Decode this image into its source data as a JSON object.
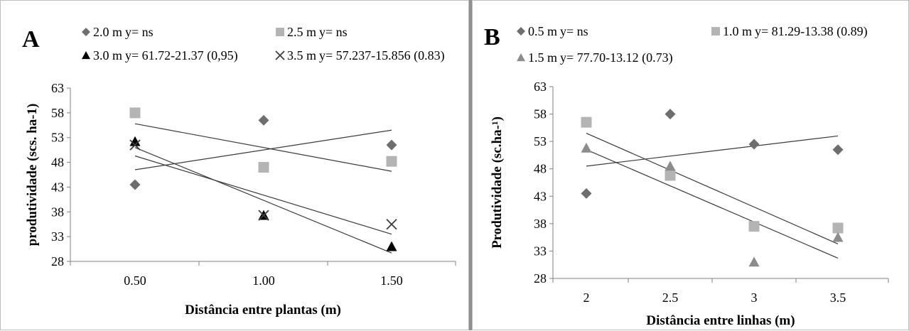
{
  "chart_data": [
    {
      "panel": "A",
      "type": "scatter",
      "xlabel": "Distância entre plantas (m)",
      "ylabel": "produtividade  (scs. ha-1)",
      "ylim": [
        28,
        63
      ],
      "yticks": [
        "28",
        "33",
        "38",
        "43",
        "48",
        "53",
        "58",
        "63"
      ],
      "categories": [
        "0.50",
        "1.00",
        "1.50"
      ],
      "grid": false,
      "legend_position": "top",
      "series": [
        {
          "name": "2.0 m",
          "equation": "y= ns",
          "marker": "diamond",
          "color": "#6e6e6e",
          "values": [
            43.5,
            56.5,
            51.5
          ],
          "trendline": [
            46.5,
            50.5,
            54.5
          ]
        },
        {
          "name": "2.5 m",
          "equation": "y= ns",
          "marker": "square",
          "color": "#b4b4b4",
          "values": [
            58,
            47,
            48.2
          ],
          "trendline": [
            55.8,
            51.0,
            46.2
          ]
        },
        {
          "name": "3.0 m",
          "equation": "y= 61.72-21.37 (0,95)",
          "marker": "triangle",
          "color": "#000000",
          "values": [
            52.2,
            37.3,
            31
          ],
          "trendline": [
            51.0,
            40.3,
            29.7
          ]
        },
        {
          "name": "3.5 m",
          "equation": "y= 57.237-15.856 (0.83)",
          "marker": "x",
          "color": "#3c3c3c",
          "values": [
            51.5,
            37.3,
            35.5
          ],
          "trendline": [
            49.3,
            41.4,
            33.5
          ]
        }
      ]
    },
    {
      "panel": "B",
      "type": "scatter",
      "xlabel": "Distância entre linhas (m)",
      "ylabel": "Produtividade (sc.ha-¹)",
      "ylim": [
        28,
        63
      ],
      "yticks": [
        "28",
        "33",
        "38",
        "43",
        "48",
        "53",
        "58",
        "63"
      ],
      "categories": [
        "2",
        "2.5",
        "3",
        "3.5"
      ],
      "grid": false,
      "legend_position": "top",
      "series": [
        {
          "name": "0.5 m",
          "equation": "y= ns",
          "marker": "diamond",
          "color": "#6e6e6e",
          "values": [
            43.5,
            58,
            52.5,
            51.5
          ],
          "trendline": [
            48.5,
            50.3,
            52.1,
            54.0
          ]
        },
        {
          "name": "1.0 m",
          "equation": "y= 81.29-13.38 (0.89)",
          "marker": "square",
          "color": "#b4b4b4",
          "values": [
            56.5,
            46.8,
            37.5,
            37.2
          ],
          "trendline": [
            54.5,
            47.8,
            41.1,
            34.3
          ]
        },
        {
          "name": "1.5 m",
          "equation": "y= 77.70-13.12 (0.73)",
          "marker": "triangle",
          "color": "#8c8c8c",
          "values": [
            51.8,
            48.5,
            31,
            35.5
          ],
          "trendline": [
            51.5,
            44.9,
            38.3,
            31.7
          ]
        }
      ]
    }
  ]
}
